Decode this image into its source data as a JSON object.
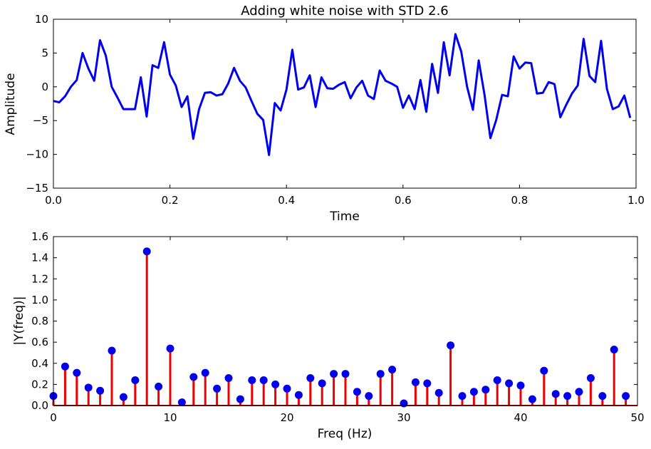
{
  "chart_data": [
    {
      "type": "line",
      "title": "Adding white noise with STD 2.6",
      "xlabel": "Time",
      "ylabel": "Amplitude",
      "xlim": [
        0,
        1
      ],
      "ylim": [
        -15,
        10
      ],
      "xticks": [
        "0.0",
        "0.2",
        "0.4",
        "0.6",
        "0.8",
        "1.0"
      ],
      "yticks": [
        "−15",
        "−10",
        "−5",
        "0",
        "5",
        "10"
      ],
      "color": "#0000ee",
      "x": [
        0,
        0.01,
        0.02,
        0.03,
        0.04,
        0.05,
        0.06,
        0.07,
        0.08,
        0.09,
        0.1,
        0.11,
        0.12,
        0.13,
        0.14,
        0.15,
        0.16,
        0.17,
        0.18,
        0.19,
        0.2,
        0.21,
        0.22,
        0.23,
        0.24,
        0.25,
        0.26,
        0.27,
        0.28,
        0.29,
        0.3,
        0.31,
        0.32,
        0.33,
        0.34,
        0.35,
        0.36,
        0.37,
        0.38,
        0.39,
        0.4,
        0.41,
        0.42,
        0.43,
        0.44,
        0.45,
        0.46,
        0.47,
        0.48,
        0.49,
        0.5,
        0.51,
        0.52,
        0.53,
        0.54,
        0.55,
        0.56,
        0.57,
        0.58,
        0.59,
        0.6,
        0.61,
        0.62,
        0.63,
        0.64,
        0.65,
        0.66,
        0.67,
        0.68,
        0.69,
        0.7,
        0.71,
        0.72,
        0.73,
        0.74,
        0.75,
        0.76,
        0.77,
        0.78,
        0.79,
        0.8,
        0.81,
        0.82,
        0.83,
        0.84,
        0.85,
        0.86,
        0.87,
        0.88,
        0.89,
        0.9,
        0.91,
        0.92,
        0.93,
        0.94,
        0.95,
        0.96,
        0.97,
        0.98,
        0.99
      ],
      "y": [
        -2.1,
        -2.3,
        -1.4,
        0.0,
        1.0,
        5.0,
        2.7,
        0.9,
        6.9,
        4.6,
        0.0,
        -1.6,
        -3.3,
        -3.3,
        -3.3,
        1.4,
        -4.4,
        3.2,
        2.8,
        6.6,
        1.8,
        0.2,
        -3.0,
        -1.4,
        -7.7,
        -3.3,
        -0.9,
        -0.8,
        -1.3,
        -1.1,
        0.5,
        2.8,
        0.9,
        -0.1,
        -2.1,
        -4.0,
        -4.9,
        -10.1,
        -2.4,
        -3.5,
        -0.4,
        5.5,
        -0.4,
        -0.1,
        1.7,
        -3.0,
        1.4,
        -0.2,
        -0.3,
        0.3,
        0.7,
        -1.7,
        -0.1,
        0.9,
        -1.3,
        -1.8,
        2.4,
        0.9,
        0.5,
        0.0,
        -3.1,
        -1.3,
        -3.3,
        1.0,
        -3.7,
        3.4,
        -0.9,
        6.6,
        1.7,
        7.8,
        5.2,
        0.0,
        -3.4,
        3.9,
        -1.2,
        -7.6,
        -4.9,
        -1.2,
        -1.4,
        4.5,
        2.7,
        3.6,
        3.5,
        -1.0,
        -0.9,
        0.7,
        0.4,
        -4.5,
        -2.7,
        -1.0,
        0.2,
        7.1,
        1.6,
        0.7,
        6.8,
        -0.3,
        -3.3,
        -2.9,
        -1.3,
        -4.6
      ]
    },
    {
      "type": "stem",
      "title": "",
      "xlabel": "Freq (Hz)",
      "ylabel": "|Y(freq)|",
      "xlim": [
        0,
        50
      ],
      "ylim": [
        0,
        1.6
      ],
      "xticks": [
        "0",
        "10",
        "20",
        "30",
        "40",
        "50"
      ],
      "yticks": [
        "0.0",
        "0.2",
        "0.4",
        "0.6",
        "0.8",
        "1.0",
        "1.2",
        "1.4",
        "1.6"
      ],
      "stem_color": "#ee0000",
      "marker_color": "#0000ee",
      "x": [
        0,
        1,
        2,
        3,
        4,
        5,
        6,
        7,
        8,
        9,
        10,
        11,
        12,
        13,
        14,
        15,
        16,
        17,
        18,
        19,
        20,
        21,
        22,
        23,
        24,
        25,
        26,
        27,
        28,
        29,
        30,
        31,
        32,
        33,
        34,
        35,
        36,
        37,
        38,
        39,
        40,
        41,
        42,
        43,
        44,
        45,
        46,
        47,
        48,
        49
      ],
      "y": [
        0.09,
        0.37,
        0.31,
        0.17,
        0.14,
        0.52,
        0.08,
        0.24,
        1.46,
        0.18,
        0.54,
        0.03,
        0.27,
        0.31,
        0.16,
        0.26,
        0.06,
        0.24,
        0.24,
        0.2,
        0.16,
        0.1,
        0.26,
        0.21,
        0.3,
        0.3,
        0.13,
        0.09,
        0.3,
        0.34,
        0.02,
        0.22,
        0.21,
        0.12,
        0.57,
        0.09,
        0.13,
        0.15,
        0.24,
        0.21,
        0.19,
        0.06,
        0.33,
        0.11,
        0.09,
        0.13,
        0.26,
        0.09,
        0.53,
        0.09
      ]
    }
  ]
}
